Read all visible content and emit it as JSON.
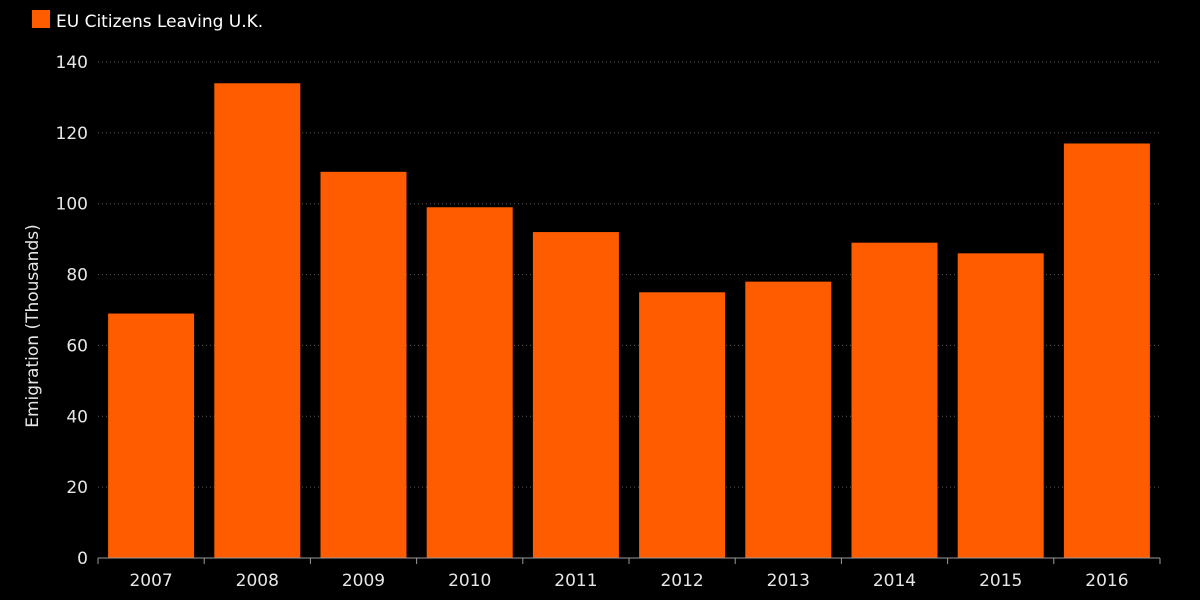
{
  "chart_data": {
    "type": "bar",
    "title": "",
    "legend": [
      {
        "label": "EU Citizens Leaving U.K.",
        "color": "#ff5c00"
      }
    ],
    "legend_position": "top-left",
    "categories": [
      "2007",
      "2008",
      "2009",
      "2010",
      "2011",
      "2012",
      "2013",
      "2014",
      "2015",
      "2016"
    ],
    "series": [
      {
        "name": "EU Citizens Leaving U.K.",
        "color": "#ff5c00",
        "values": [
          69,
          134,
          109,
          99,
          92,
          75,
          78,
          89,
          86,
          117
        ]
      }
    ],
    "xlabel": "",
    "ylabel": "Emigration (Thousands)",
    "ylim": [
      0,
      140
    ],
    "yticks": [
      "0",
      "20",
      "40",
      "60",
      "80",
      "100",
      "120",
      "140"
    ],
    "grid": true,
    "colors": {
      "background": "#000000",
      "grid": "#5a5a5a",
      "axis": "#9a9a9a",
      "text": "#e6e6e6"
    }
  }
}
